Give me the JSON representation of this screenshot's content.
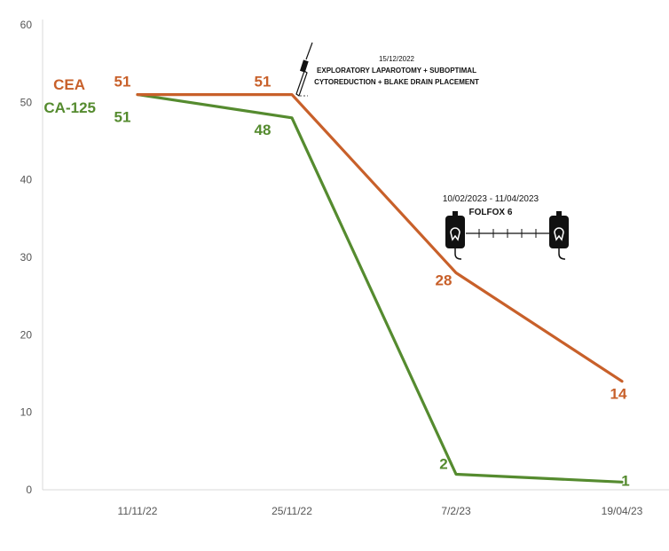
{
  "chart_data": {
    "type": "line",
    "categories": [
      "11/11/22",
      "25/11/22",
      "7/2/23",
      "19/04/23"
    ],
    "series": [
      {
        "name": "CEA",
        "values": [
          51,
          51,
          28,
          14
        ],
        "color": "#C8602A"
      },
      {
        "name": "CA-125",
        "values": [
          51,
          48,
          2,
          1
        ],
        "color": "#558B2F"
      }
    ],
    "ylim": [
      0,
      60
    ],
    "yticks": [
      "0",
      "10",
      "20",
      "30",
      "40",
      "50",
      "60"
    ],
    "grid": false,
    "legend": "top-left",
    "annotations": {
      "surgery": {
        "date": "15/12/2022",
        "line1": "EXPLORATORY LAPAROTOMY + SUBOPTIMAL",
        "line2": "CYTOREDUCTION + BLAKE DRAIN PLACEMENT",
        "icon": "scalpel-icon"
      },
      "chemo": {
        "dates": "10/02/2023 - 11/04/2023",
        "regimen": "FOLFOX 6",
        "icon": "iv-bag-icon"
      }
    }
  }
}
